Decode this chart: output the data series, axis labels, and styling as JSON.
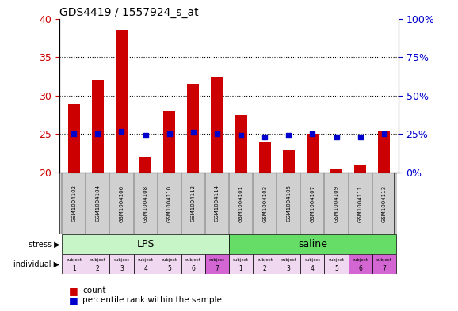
{
  "title": "GDS4419 / 1557924_s_at",
  "samples": [
    "GSM1004102",
    "GSM1004104",
    "GSM1004106",
    "GSM1004108",
    "GSM1004110",
    "GSM1004112",
    "GSM1004114",
    "GSM1004101",
    "GSM1004103",
    "GSM1004105",
    "GSM1004107",
    "GSM1004109",
    "GSM1004111",
    "GSM1004113"
  ],
  "counts": [
    29.0,
    32.0,
    38.5,
    22.0,
    28.0,
    31.5,
    32.5,
    27.5,
    24.0,
    23.0,
    25.0,
    20.5,
    21.0,
    25.5
  ],
  "percentiles": [
    25,
    25,
    27,
    24,
    25,
    26,
    25,
    24,
    23,
    24,
    25,
    23,
    23,
    25
  ],
  "y_min": 20,
  "y_max": 40,
  "y_ticks": [
    20,
    25,
    30,
    35,
    40
  ],
  "y2_ticks": [
    0,
    25,
    50,
    75,
    100
  ],
  "stress_groups": [
    {
      "label": "LPS",
      "start": 0,
      "end": 7,
      "color": "#c8f5c8"
    },
    {
      "label": "saline",
      "start": 7,
      "end": 14,
      "color": "#66dd66"
    }
  ],
  "individual_colors": [
    "#f0d8f0",
    "#f0d8f0",
    "#f0d8f0",
    "#f0d8f0",
    "#f0d8f0",
    "#f0d8f0",
    "#d466d4",
    "#f0d8f0",
    "#f0d8f0",
    "#f0d8f0",
    "#f0d8f0",
    "#f0d8f0",
    "#d466d4",
    "#d466d4"
  ],
  "individual_numbers": [
    1,
    2,
    3,
    4,
    5,
    6,
    7,
    1,
    2,
    3,
    4,
    5,
    6,
    7
  ],
  "bar_color": "#cc0000",
  "dot_color": "#0000cc",
  "bar_bottom": 20,
  "bar_width": 0.5,
  "background_color": "#ffffff",
  "tick_label_color_left": "#cc0000",
  "tick_label_color_right": "#0000cc",
  "sample_bg_color": "#d0d0d0"
}
